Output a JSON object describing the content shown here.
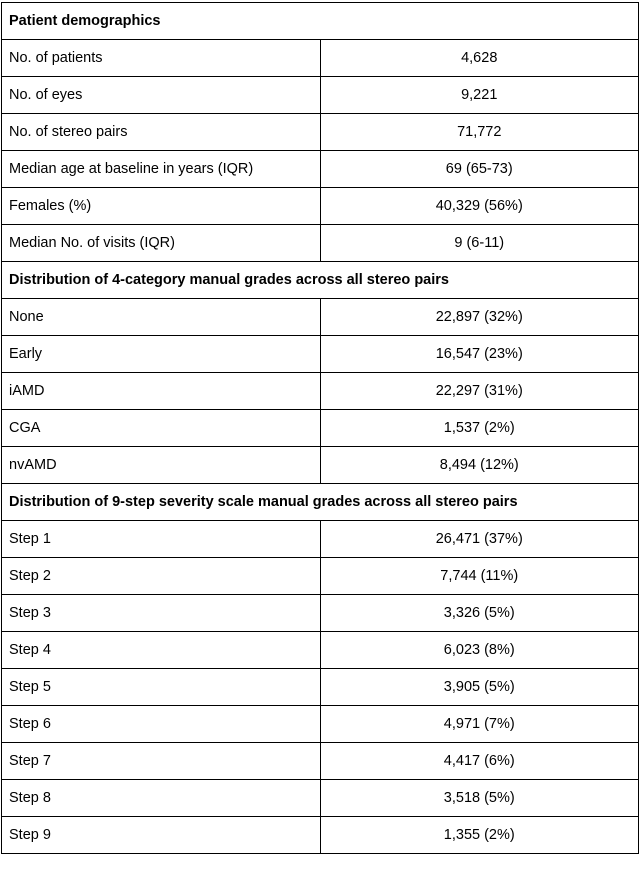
{
  "sections": [
    {
      "title": "Patient demographics",
      "rows": [
        {
          "label": "No. of patients",
          "value": "4,628"
        },
        {
          "label": "No. of eyes",
          "value": "9,221"
        },
        {
          "label": "No. of stereo pairs",
          "value": "71,772"
        },
        {
          "label": "Median age at baseline in years (IQR)",
          "value": "69 (65-73)"
        },
        {
          "label": "Females (%)",
          "value": "40,329 (56%)"
        },
        {
          "label": "Median No. of visits (IQR)",
          "value": "9 (6-11)"
        }
      ]
    },
    {
      "title": "Distribution of 4-category manual grades across all stereo pairs",
      "rows": [
        {
          "label": "None",
          "value": "22,897 (32%)"
        },
        {
          "label": "Early",
          "value": "16,547 (23%)"
        },
        {
          "label": "iAMD",
          "value": "22,297 (31%)"
        },
        {
          "label": "CGA",
          "value": "1,537 (2%)"
        },
        {
          "label": "nvAMD",
          "value": "8,494 (12%)"
        }
      ]
    },
    {
      "title": "Distribution of 9-step severity scale manual grades across all stereo pairs",
      "rows": [
        {
          "label": "Step 1",
          "value": "26,471 (37%)"
        },
        {
          "label": "Step 2",
          "value": "7,744 (11%)"
        },
        {
          "label": "Step 3",
          "value": "3,326 (5%)"
        },
        {
          "label": "Step 4",
          "value": "6,023 (8%)"
        },
        {
          "label": "Step 5",
          "value": "3,905 (5%)"
        },
        {
          "label": "Step 6",
          "value": "4,971 (7%)"
        },
        {
          "label": "Step 7",
          "value": "4,417 (6%)"
        },
        {
          "label": "Step 8",
          "value": "3,518 (5%)"
        },
        {
          "label": "Step 9",
          "value": "1,355 (2%)"
        }
      ]
    }
  ]
}
